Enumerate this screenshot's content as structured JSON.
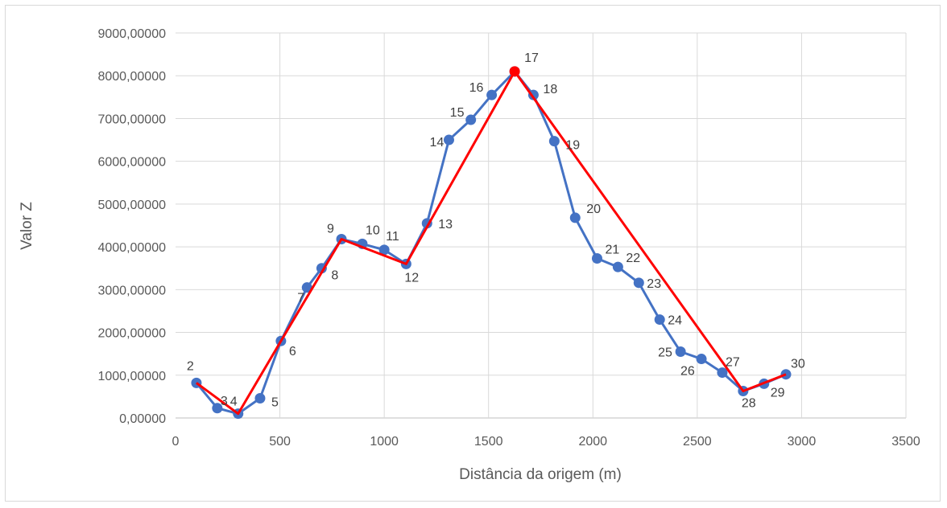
{
  "chart_data": {
    "type": "scatter",
    "title": "",
    "xlabel": "Distância da origem (m)",
    "ylabel": "Valor Z",
    "xlim": [
      0,
      3500
    ],
    "ylim": [
      0,
      9000
    ],
    "x_ticks": [
      0,
      500,
      1000,
      1500,
      2000,
      2500,
      3000,
      3500
    ],
    "y_ticks": [
      0,
      1000,
      2000,
      3000,
      4000,
      5000,
      6000,
      7000,
      8000,
      9000
    ],
    "x_tick_labels": [
      "0",
      "500",
      "1000",
      "1500",
      "2000",
      "2500",
      "3000",
      "3500"
    ],
    "y_tick_labels": [
      "0,00000",
      "1000,00000",
      "2000,00000",
      "3000,00000",
      "4000,00000",
      "5000,00000",
      "6000,00000",
      "7000,00000",
      "8000,00000",
      "9000,00000"
    ],
    "grid": true,
    "legend": "none",
    "series": [
      {
        "style": "line-with-markers",
        "color": "#4472c4",
        "points": [
          {
            "label": "2",
            "x": 100,
            "y": 820
          },
          {
            "label": "3",
            "x": 200,
            "y": 230
          },
          {
            "label": "4",
            "x": 300,
            "y": 100
          },
          {
            "label": "5",
            "x": 405,
            "y": 460
          },
          {
            "label": "6",
            "x": 505,
            "y": 1800
          },
          {
            "label": "7",
            "x": 630,
            "y": 3050
          },
          {
            "label": "8",
            "x": 700,
            "y": 3500
          },
          {
            "label": "9",
            "x": 795,
            "y": 4180
          },
          {
            "label": "10",
            "x": 895,
            "y": 4070
          },
          {
            "label": "11",
            "x": 1000,
            "y": 3930
          },
          {
            "label": "12",
            "x": 1105,
            "y": 3600
          },
          {
            "label": "13",
            "x": 1205,
            "y": 4550
          },
          {
            "label": "14",
            "x": 1310,
            "y": 6500
          },
          {
            "label": "15",
            "x": 1415,
            "y": 6970
          },
          {
            "label": "16",
            "x": 1515,
            "y": 7550
          },
          {
            "label": "17",
            "x": 1625,
            "y": 8100
          },
          {
            "label": "18",
            "x": 1715,
            "y": 7550
          },
          {
            "label": "19",
            "x": 1815,
            "y": 6470
          },
          {
            "label": "20",
            "x": 1915,
            "y": 4680
          },
          {
            "label": "21",
            "x": 2020,
            "y": 3730
          },
          {
            "label": "22",
            "x": 2120,
            "y": 3530
          },
          {
            "label": "23",
            "x": 2220,
            "y": 3160
          },
          {
            "label": "24",
            "x": 2320,
            "y": 2300
          },
          {
            "label": "25",
            "x": 2420,
            "y": 1550
          },
          {
            "label": "26",
            "x": 2520,
            "y": 1380
          },
          {
            "label": "27",
            "x": 2620,
            "y": 1060
          },
          {
            "label": "28",
            "x": 2720,
            "y": 630
          },
          {
            "label": "29",
            "x": 2820,
            "y": 800
          },
          {
            "label": "30",
            "x": 2925,
            "y": 1020
          }
        ]
      },
      {
        "style": "line",
        "color": "#ff0000",
        "points": [
          {
            "x": 100,
            "y": 820
          },
          {
            "x": 300,
            "y": 100
          },
          {
            "x": 505,
            "y": 1800
          },
          {
            "x": 795,
            "y": 4180
          },
          {
            "x": 1105,
            "y": 3600
          },
          {
            "x": 1625,
            "y": 8100
          },
          {
            "x": 2720,
            "y": 630
          },
          {
            "x": 2925,
            "y": 1020
          }
        ]
      }
    ]
  }
}
